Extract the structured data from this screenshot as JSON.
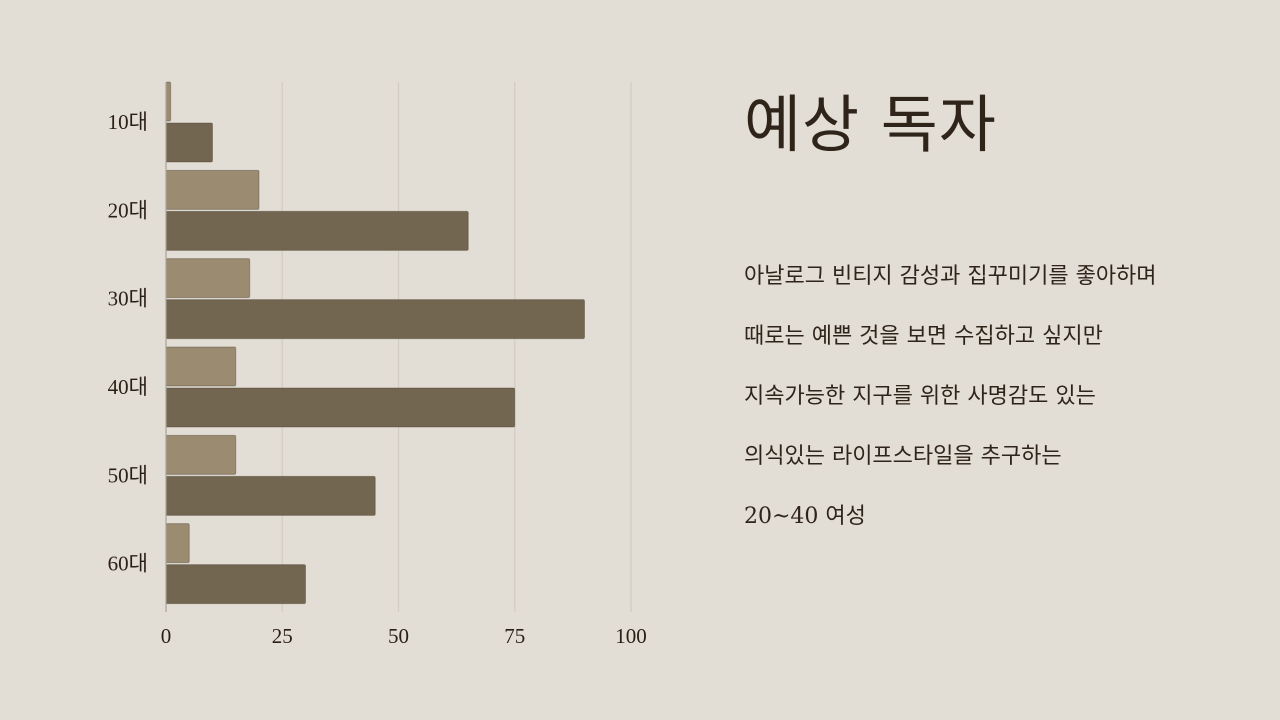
{
  "title": "예상 독자",
  "description_lines": [
    "아날로그 빈티지 감성과 집꾸미기를 좋아하며",
    "때로는 예쁜 것을 보면 수집하고 싶지만",
    "지속가능한 지구를 위한 사명감도 있는",
    "의식있는 라이프스타일을 추구하는",
    "20~40 여성"
  ],
  "chart_data": {
    "type": "bar",
    "orientation": "horizontal",
    "categories": [
      "10대",
      "20대",
      "30대",
      "40대",
      "50대",
      "60대"
    ],
    "series": [
      {
        "values": [
          1,
          20,
          18,
          15,
          15,
          5
        ],
        "color": "#9b8b71"
      },
      {
        "values": [
          10,
          65,
          90,
          75,
          45,
          30
        ],
        "color": "#736651"
      }
    ],
    "xlim": [
      0,
      100
    ],
    "xticks": [
      0,
      25,
      50,
      75,
      100
    ],
    "grid": true,
    "legend": "none",
    "title": "",
    "xlabel": "",
    "ylabel": ""
  },
  "colors": {
    "background": "#e2ddd5",
    "grid": "#d2ccc2",
    "axis": "#aaa296",
    "text": "#2f2419"
  }
}
